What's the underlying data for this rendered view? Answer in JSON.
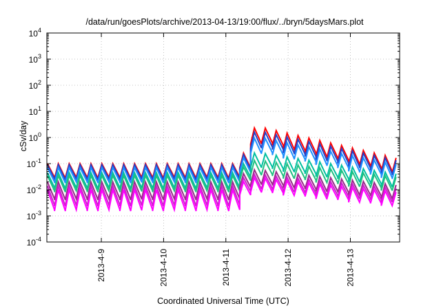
{
  "chart_data": {
    "type": "line",
    "title": "/data/run/goesPlots/archive/2013-04-13/19:00/flux/../bryn/5daysMars.plot",
    "xlabel": "Coordinated Universal Time (UTC)",
    "ylabel": "cSv/day",
    "y_scale": "log",
    "ylim": [
      0.0001,
      10000
    ],
    "y_ticks": [
      {
        "value": 0.0001,
        "base": "10",
        "exp": "-4"
      },
      {
        "value": 0.001,
        "base": "10",
        "exp": "-3"
      },
      {
        "value": 0.01,
        "base": "10",
        "exp": "-2"
      },
      {
        "value": 0.1,
        "base": "10",
        "exp": "-1"
      },
      {
        "value": 1,
        "base": "10",
        "exp": "0"
      },
      {
        "value": 10,
        "base": "10",
        "exp": "1"
      },
      {
        "value": 100,
        "base": "10",
        "exp": "2"
      },
      {
        "value": 1000,
        "base": "10",
        "exp": "3"
      },
      {
        "value": 10000,
        "base": "10",
        "exp": "4"
      }
    ],
    "xlim": [
      "2013-04-08T03:00",
      "2013-04-13T19:00"
    ],
    "x_ticks": [
      {
        "value": "2013-04-09T00:00",
        "label": "2013-4-9"
      },
      {
        "value": "2013-04-10T00:00",
        "label": "2013-4-10"
      },
      {
        "value": "2013-04-11T00:00",
        "label": "2013-4-11"
      },
      {
        "value": "2013-04-12T00:00",
        "label": "2013-4-12"
      },
      {
        "value": "2013-04-13T00:00",
        "label": "2013-4-13"
      }
    ],
    "grid": true,
    "cycle_hours": 4.2,
    "event_onset": "2013-04-11T07:00",
    "peak_time": "2013-04-11T12:00",
    "series": [
      {
        "color": "#ff0000",
        "peak_before": 0.1,
        "trough_before": 0.03,
        "peak_event": 2.8,
        "peak_end": 0.16,
        "trough_ratio_event": 0.27
      },
      {
        "color": "#2244cc",
        "peak_before": 0.09,
        "trough_before": 0.026,
        "peak_event": 1.9,
        "peak_end": 0.13,
        "trough_ratio_event": 0.27
      },
      {
        "color": "#1e90ff",
        "peak_before": 0.07,
        "trough_before": 0.02,
        "peak_event": 1.1,
        "peak_end": 0.09,
        "trough_ratio_event": 0.28
      },
      {
        "color": "#00bfa0",
        "peak_before": 0.045,
        "trough_before": 0.012,
        "peak_event": 0.28,
        "peak_end": 0.04,
        "trough_ratio_event": 0.3
      },
      {
        "color": "#20c080",
        "peak_before": 0.035,
        "trough_before": 0.009,
        "peak_event": 0.14,
        "peak_end": 0.03,
        "trough_ratio_event": 0.3
      },
      {
        "color": "#9a2a8a",
        "peak_before": 0.02,
        "trough_before": 0.0045,
        "peak_event": 0.06,
        "peak_end": 0.015,
        "trough_ratio_event": 0.3
      },
      {
        "color": "#cc22cc",
        "peak_before": 0.014,
        "trough_before": 0.0026,
        "peak_event": 0.04,
        "peak_end": 0.011,
        "trough_ratio_event": 0.3
      },
      {
        "color": "#ff00ff",
        "peak_before": 0.01,
        "trough_before": 0.0017,
        "peak_event": 0.03,
        "peak_end": 0.008,
        "trough_ratio_event": 0.3
      }
    ]
  }
}
